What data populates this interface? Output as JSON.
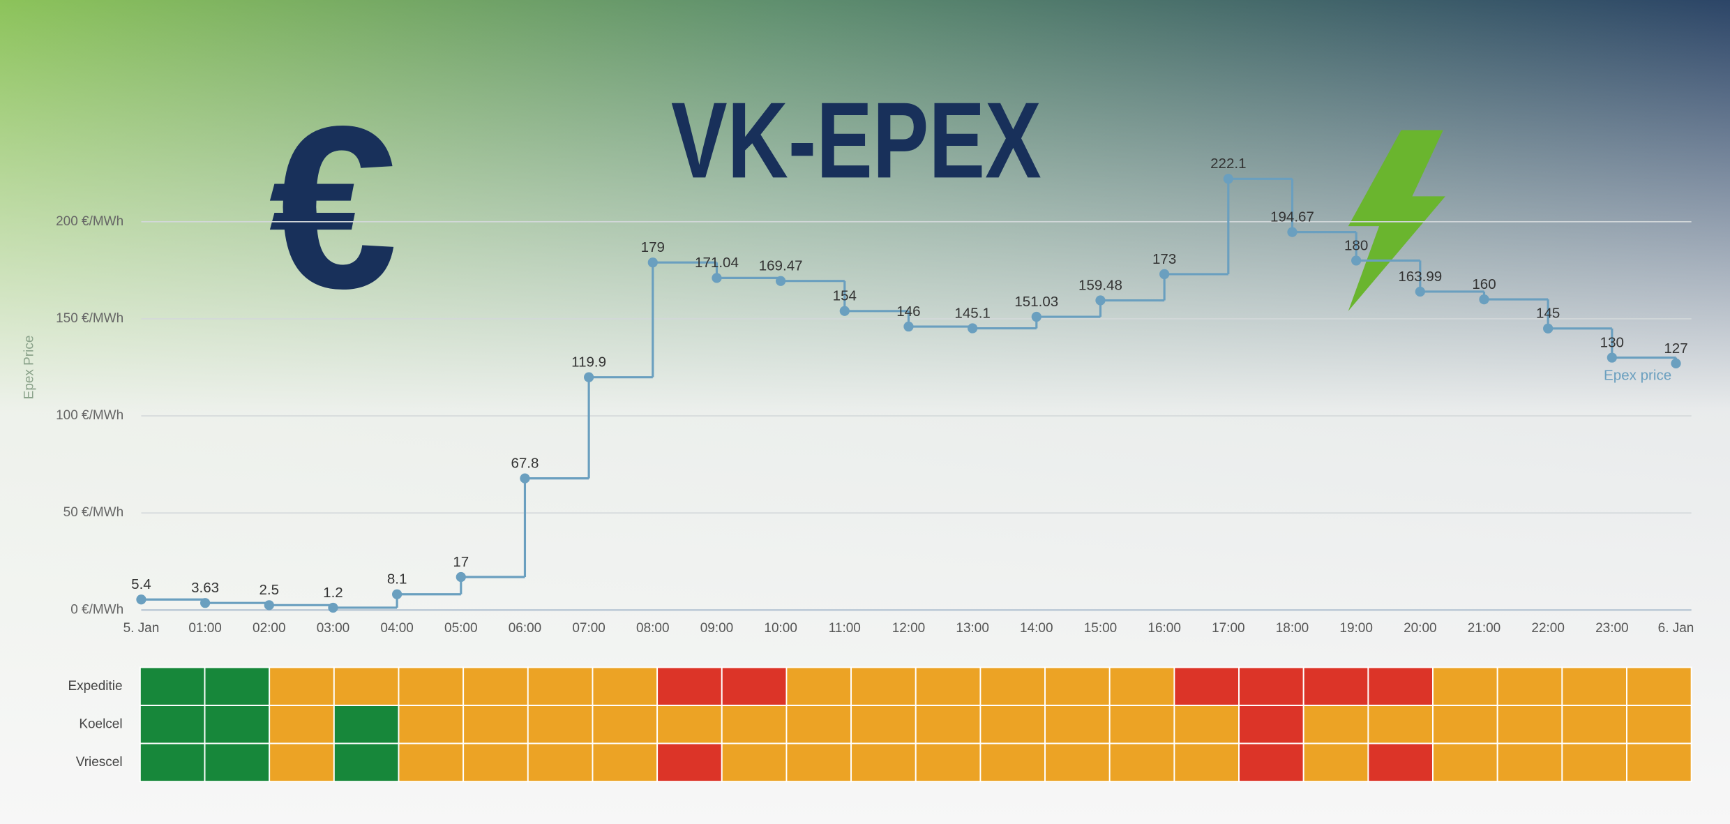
{
  "title": "VK-EPEX",
  "euro_symbol": "€",
  "chart_data": [
    {
      "type": "line",
      "step": "after",
      "y_label": "Epex Price",
      "x": [
        "5. Jan",
        "01:00",
        "02:00",
        "03:00",
        "04:00",
        "05:00",
        "06:00",
        "07:00",
        "08:00",
        "09:00",
        "10:00",
        "11:00",
        "12:00",
        "13:00",
        "14:00",
        "15:00",
        "16:00",
        "17:00",
        "18:00",
        "19:00",
        "20:00",
        "21:00",
        "22:00",
        "23:00",
        "6. Jan"
      ],
      "series": [
        {
          "name": "Epex price",
          "color": "#6a9fbf",
          "values": [
            5.4,
            3.63,
            2.5,
            1.2,
            8.1,
            17,
            67.8,
            119.9,
            179,
            171.04,
            169.47,
            154,
            146,
            145.1,
            151.03,
            159.48,
            173,
            222.1,
            194.67,
            180,
            163.99,
            160,
            145,
            130,
            127
          ]
        }
      ],
      "ylim": [
        0,
        250
      ],
      "yticks": [
        {
          "value": 0,
          "label": "0 €/MWh"
        },
        {
          "value": 50,
          "label": "50 €/MWh"
        },
        {
          "value": 100,
          "label": "100 €/MWh"
        },
        {
          "value": 150,
          "label": "150 €/MWh"
        },
        {
          "value": 200,
          "label": "200 €/MWh"
        }
      ],
      "grid": true,
      "legend": "right"
    },
    {
      "type": "heatmap",
      "rows": [
        "Expeditie",
        "Koelcel",
        "Vriescel"
      ],
      "cells": [
        [
          "#17873a",
          "#17873a",
          "#eca325",
          "#eca325",
          "#eca325",
          "#eca325",
          "#eca325",
          "#eca325",
          "#dc3428",
          "#dc3428",
          "#eca325",
          "#eca325",
          "#eca325",
          "#eca325",
          "#eca325",
          "#eca325",
          "#dc3428",
          "#dc3428",
          "#dc3428",
          "#dc3428",
          "#eca325",
          "#eca325",
          "#eca325",
          "#eca325"
        ],
        [
          "#17873a",
          "#17873a",
          "#eca325",
          "#17873a",
          "#eca325",
          "#eca325",
          "#eca325",
          "#eca325",
          "#eca325",
          "#eca325",
          "#eca325",
          "#eca325",
          "#eca325",
          "#eca325",
          "#eca325",
          "#eca325",
          "#eca325",
          "#dc3428",
          "#eca325",
          "#eca325",
          "#eca325",
          "#eca325",
          "#eca325",
          "#eca325"
        ],
        [
          "#17873a",
          "#17873a",
          "#eca325",
          "#17873a",
          "#eca325",
          "#eca325",
          "#eca325",
          "#eca325",
          "#dc3428",
          "#eca325",
          "#eca325",
          "#eca325",
          "#eca325",
          "#eca325",
          "#eca325",
          "#eca325",
          "#eca325",
          "#dc3428",
          "#eca325",
          "#dc3428",
          "#eca325",
          "#eca325",
          "#eca325",
          "#eca325"
        ]
      ]
    }
  ]
}
